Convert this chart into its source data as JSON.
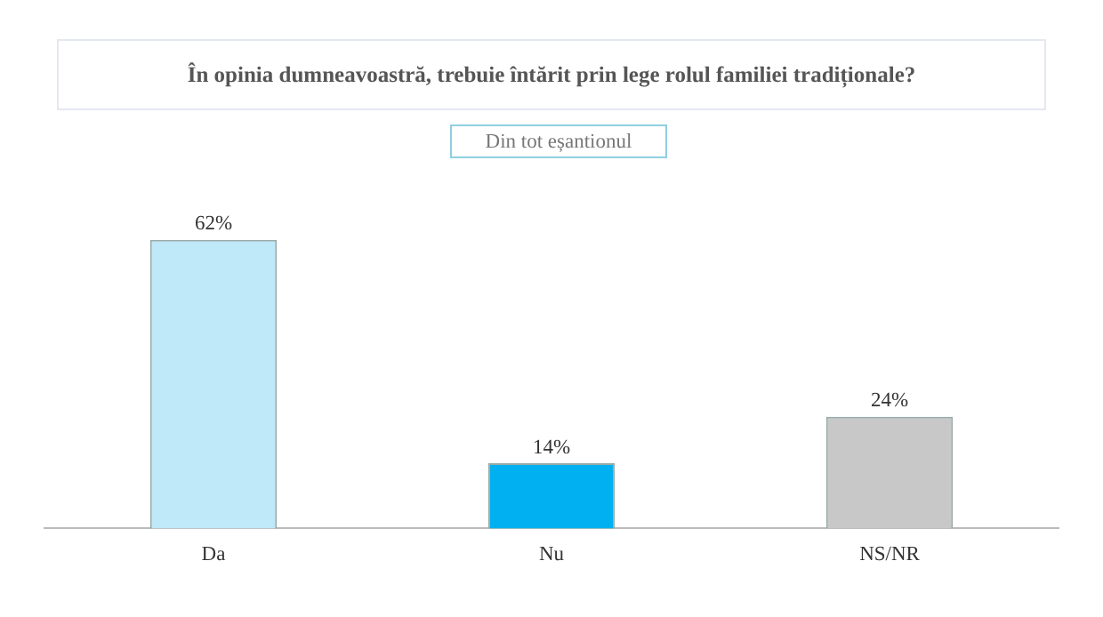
{
  "chart_data": {
    "type": "bar",
    "title": "În opinia dumneavoastră, trebuie întărit prin lege rolul familiei tradiționale?",
    "subtitle": "Din tot eșantionul",
    "categories": [
      "Da",
      "Nu",
      "NS/NR"
    ],
    "values": [
      62,
      14,
      24
    ],
    "colors": [
      "#bfe8f8",
      "#00b0f0",
      "#c8c8c8"
    ],
    "value_labels": [
      "62%",
      "14%",
      "24%"
    ],
    "tick_labels": "x",
    "grid": false,
    "legend": false
  }
}
